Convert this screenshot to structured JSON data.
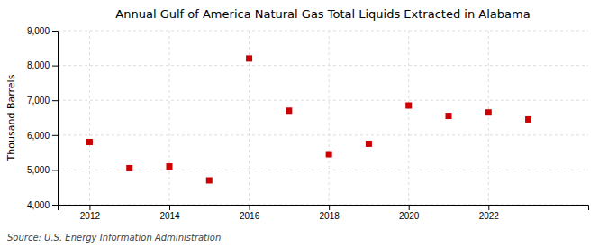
{
  "chart_data": {
    "type": "scatter",
    "title": "Annual Gulf of America Natural Gas Total Liquids Extracted in Alabama",
    "ylabel": "Thousand Barrels",
    "source": "Source: U.S. Energy Information Administration",
    "x": [
      2012,
      2013,
      2014,
      2015,
      2016,
      2017,
      2018,
      2019,
      2020,
      2021,
      2022,
      2023
    ],
    "values": [
      5800,
      5050,
      5100,
      4700,
      8200,
      6700,
      5450,
      5750,
      6850,
      6550,
      6650,
      6450
    ],
    "xlim": [
      2011.2,
      2024.5
    ],
    "xticks": [
      2012,
      2014,
      2016,
      2018,
      2020,
      2022
    ],
    "ylim": [
      4000,
      9000
    ],
    "yticks": [
      {
        "value": 4000,
        "label": "4,000"
      },
      {
        "value": 5000,
        "label": "5,000"
      },
      {
        "value": 6000,
        "label": "6,000"
      },
      {
        "value": 7000,
        "label": "7,000"
      },
      {
        "value": 8000,
        "label": "8,000"
      },
      {
        "value": 9000,
        "label": "9,000"
      }
    ],
    "color": "#cc0000",
    "marker": "square",
    "grid": true
  }
}
